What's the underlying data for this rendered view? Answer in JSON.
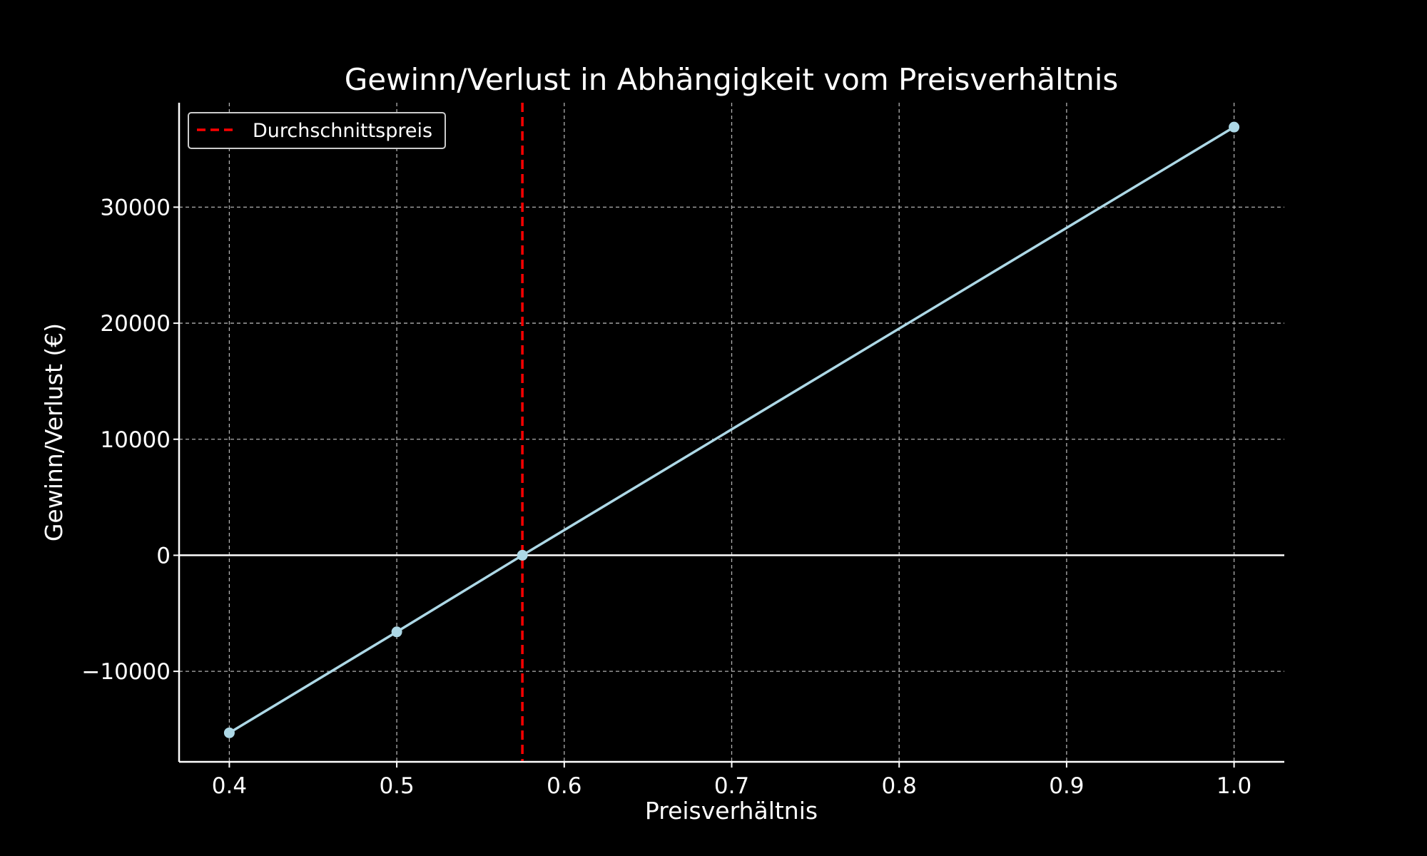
{
  "chart_data": {
    "type": "line",
    "title": "Gewinn/Verlust in Abhängigkeit vom Preisverhältnis",
    "xlabel": "Preisverhältnis",
    "ylabel": "Gewinn/Verlust (€)",
    "xlim": [
      0.37,
      1.03
    ],
    "ylim": [
      -17800,
      39000
    ],
    "xticks": [
      0.4,
      0.5,
      0.6,
      0.7,
      0.8,
      0.9,
      1.0
    ],
    "xtick_labels": [
      "0.4",
      "0.5",
      "0.6",
      "0.7",
      "0.8",
      "0.9",
      "1.0"
    ],
    "yticks": [
      -10000,
      0,
      10000,
      20000,
      30000
    ],
    "ytick_labels": [
      "−10000",
      "0",
      "10000",
      "20000",
      "30000"
    ],
    "grid": true,
    "legend_position": "top-left",
    "series": [
      {
        "x": [
          0.4,
          0.5,
          0.575,
          1.0
        ],
        "y": [
          -15300,
          -6600,
          0,
          36900
        ],
        "color": "#add8e6",
        "marker": "circle"
      }
    ],
    "reference_lines": [
      {
        "orientation": "vertical",
        "x": 0.575,
        "name": "Durchschnittspreis",
        "color": "#ff0000",
        "style": "dashed"
      },
      {
        "orientation": "horizontal",
        "y": 0,
        "color": "#ffffff",
        "style": "solid"
      }
    ]
  }
}
